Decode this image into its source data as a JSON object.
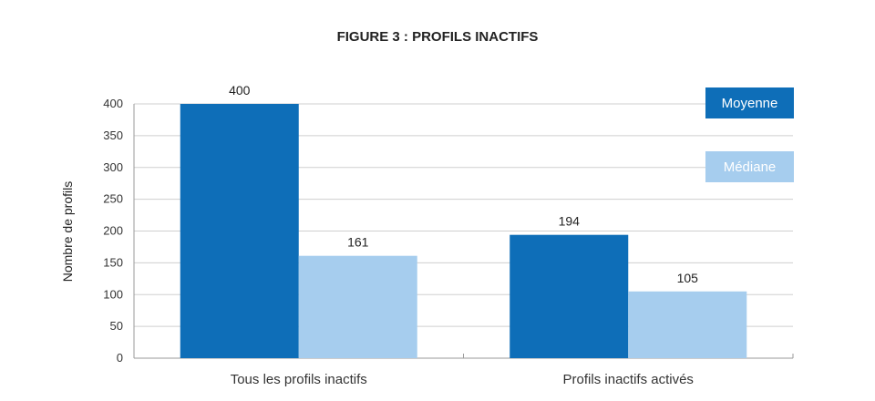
{
  "chart_data": {
    "type": "bar",
    "title": "FIGURE 3 : PROFILS INACTIFS",
    "ylabel": "Nombre de profils",
    "xlabel": "",
    "categories": [
      "Tous les profils inactifs",
      "Profils inactifs activés"
    ],
    "series": [
      {
        "name": "Moyenne",
        "values": [
          400,
          194
        ],
        "color": "#0e6eb8"
      },
      {
        "name": "Médiane",
        "values": [
          161,
          105
        ],
        "color": "#a6cdee"
      }
    ],
    "ylim": [
      0,
      400
    ],
    "yticks": [
      0,
      50,
      100,
      150,
      200,
      250,
      300,
      350,
      400
    ],
    "grid": true,
    "legend": "top-right"
  }
}
